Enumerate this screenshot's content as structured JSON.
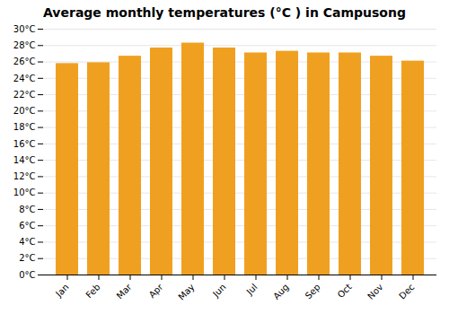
{
  "chart_data": {
    "type": "bar",
    "title": "Average monthly temperatures (°C ) in Campusong",
    "categories": [
      "Jan",
      "Feb",
      "Mar",
      "Apr",
      "May",
      "Jun",
      "Jul",
      "Aug",
      "Sep",
      "Oct",
      "Nov",
      "Dec"
    ],
    "values": [
      25.8,
      25.9,
      26.7,
      27.7,
      28.3,
      27.7,
      27.1,
      27.3,
      27.1,
      27.1,
      26.7,
      26.1
    ],
    "color": "#F0A020",
    "ylim": [
      0,
      30
    ],
    "yticks": [
      {
        "value": 0,
        "label": "0°C"
      },
      {
        "value": 2,
        "label": "2°C"
      },
      {
        "value": 4,
        "label": "4°C"
      },
      {
        "value": 6,
        "label": "6°C"
      },
      {
        "value": 8,
        "label": "8°C"
      },
      {
        "value": 10,
        "label": "10°C"
      },
      {
        "value": 12,
        "label": "12°C"
      },
      {
        "value": 14,
        "label": "14°C"
      },
      {
        "value": 16,
        "label": "16°C"
      },
      {
        "value": 18,
        "label": "18°C"
      },
      {
        "value": 20,
        "label": "20°C"
      },
      {
        "value": 22,
        "label": "22°C"
      },
      {
        "value": 24,
        "label": "24°C"
      },
      {
        "value": 26,
        "label": "26°C"
      },
      {
        "value": 28,
        "label": "28°C"
      },
      {
        "value": 30,
        "label": "30°C"
      }
    ],
    "grid": true
  }
}
